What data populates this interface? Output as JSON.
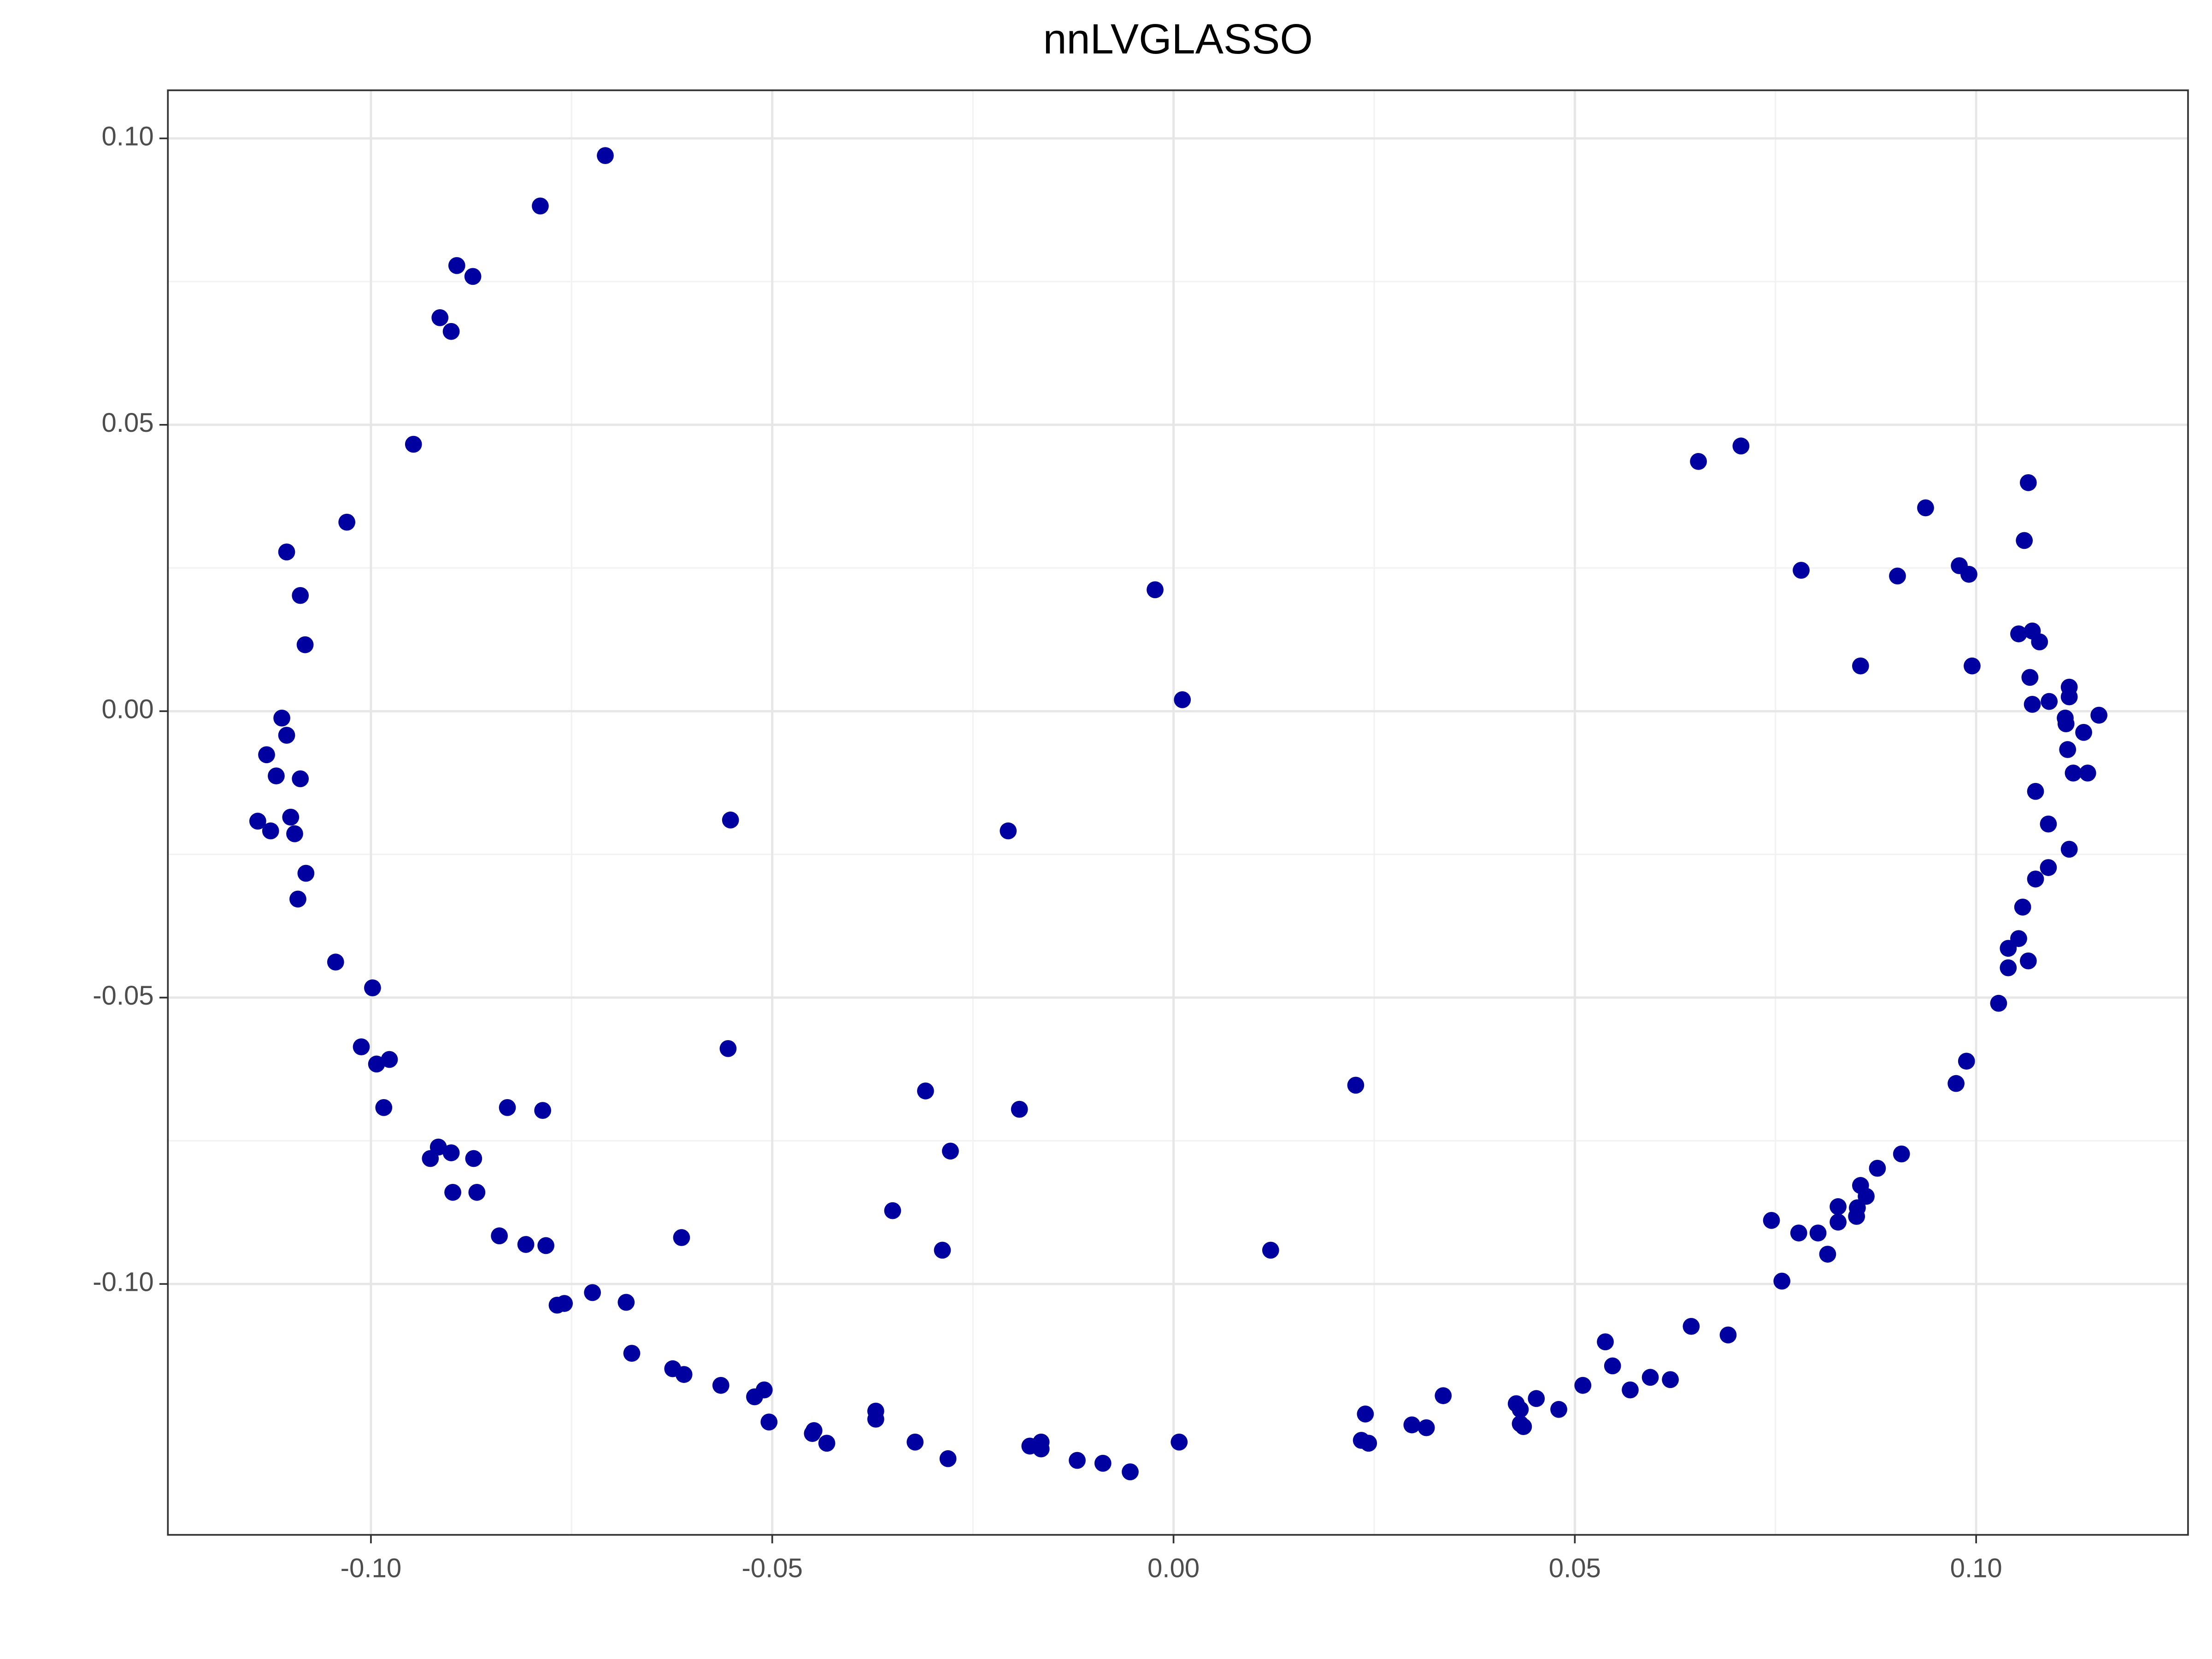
{
  "chart_data": {
    "type": "scatter",
    "title": "nnLVGLASSO",
    "color": "#0000a0",
    "grid": true,
    "xlim": [
      -0.1253,
      0.1264
    ],
    "ylim": [
      -0.1438,
      0.1084
    ],
    "xticks": [
      {
        "value": -0.1,
        "label": "-0.10"
      },
      {
        "value": -0.05,
        "label": "-0.05"
      },
      {
        "value": 0,
        "label": "0.00"
      },
      {
        "value": 0.05,
        "label": "0.05"
      },
      {
        "value": 0.1,
        "label": "0.10"
      }
    ],
    "yticks": [
      {
        "value": -0.1,
        "label": "-0.10"
      },
      {
        "value": -0.05,
        "label": "-0.05"
      },
      {
        "value": 0,
        "label": "0.00"
      },
      {
        "value": 0.05,
        "label": "0.05"
      },
      {
        "value": 0.1,
        "label": "0.10"
      }
    ],
    "x": [
      -0.0708,
      -0.0789,
      -0.0893,
      -0.0873,
      -0.0914,
      -0.09,
      -0.0947,
      -0.103,
      -0.1105,
      -0.1088,
      -0.1082,
      -0.1111,
      -0.1105,
      -0.113,
      -0.1118,
      -0.1088,
      -0.1141,
      -0.11,
      -0.1125,
      -0.1095,
      -0.1081,
      -0.1091,
      -0.1044,
      -0.0998,
      -0.1012,
      -0.0993,
      -0.0977,
      -0.0984,
      -0.0916,
      -0.0926,
      -0.09,
      -0.0872,
      -0.0898,
      -0.0868,
      -0.083,
      -0.0786,
      -0.084,
      -0.0807,
      -0.0782,
      -0.0768,
      -0.0759,
      -0.0724,
      -0.0682,
      -0.0675,
      -0.0624,
      -0.061,
      -0.0613,
      -0.0564,
      -0.0552,
      -0.0555,
      -0.051,
      -0.0522,
      -0.0504,
      -0.0448,
      -0.045,
      -0.0432,
      -0.0371,
      -0.0371,
      -0.0322,
      -0.0281,
      -0.035,
      -0.0309,
      -0.0288,
      -0.0278,
      -0.0206,
      -0.0192,
      -0.0179,
      -0.0165,
      -0.0165,
      -0.012,
      -0.0088,
      -0.0054,
      -0.0023,
      0.0011,
      0.0007,
      0.0121,
      0.0227,
      0.0239,
      0.0234,
      0.0243,
      0.0297,
      0.0315,
      0.0336,
      0.0427,
      0.0432,
      0.0436,
      0.0432,
      0.0452,
      0.048,
      0.051,
      0.0538,
      0.0547,
      0.0569,
      0.0594,
      0.0619,
      0.0645,
      0.0691,
      0.0654,
      0.0707,
      0.0745,
      0.0758,
      0.0779,
      0.0803,
      0.0815,
      0.0828,
      0.0828,
      0.0782,
      0.0856,
      0.0851,
      0.0852,
      0.0856,
      0.0863,
      0.0877,
      0.0902,
      0.0907,
      0.0937,
      0.0975,
      0.0979,
      0.0991,
      0.0988,
      0.0995,
      0.1028,
      0.104,
      0.104,
      0.1053,
      0.1058,
      0.1065,
      0.1053,
      0.106,
      0.1065,
      0.107,
      0.1079,
      0.1067,
      0.107,
      0.1074,
      0.1074,
      0.1091,
      0.109,
      0.109,
      0.1116,
      0.1116,
      0.1111,
      0.1112,
      0.1114,
      0.1121,
      0.1139,
      0.1134,
      0.1153,
      0.1116
    ],
    "y": [
      0.097,
      0.0882,
      0.0778,
      0.0759,
      0.0687,
      0.0663,
      0.0466,
      0.033,
      0.0278,
      0.0202,
      0.0116,
      -0.0012,
      -0.0042,
      -0.0076,
      -0.0113,
      -0.0118,
      -0.0192,
      -0.0185,
      -0.0209,
      -0.0214,
      -0.0283,
      -0.0328,
      -0.0438,
      -0.0483,
      -0.0586,
      -0.0616,
      -0.0608,
      -0.0692,
      -0.0761,
      -0.0781,
      -0.0771,
      -0.0781,
      -0.084,
      -0.084,
      -0.0692,
      -0.0697,
      -0.0916,
      -0.0931,
      -0.0933,
      -0.1037,
      -0.1034,
      -0.1015,
      -0.1032,
      -0.1121,
      -0.1148,
      -0.1158,
      -0.0919,
      -0.1177,
      -0.019,
      -0.0589,
      -0.1185,
      -0.1197,
      -0.1241,
      -0.1256,
      -0.1261,
      -0.1278,
      -0.1222,
      -0.1236,
      -0.1276,
      -0.1305,
      -0.0872,
      -0.0663,
      -0.0941,
      -0.0768,
      -0.0209,
      -0.0695,
      -0.1283,
      -0.1276,
      -0.1288,
      -0.1308,
      -0.1313,
      -0.1328,
      0.0212,
      0.002,
      -0.1276,
      -0.0941,
      -0.0653,
      -0.1227,
      -0.1273,
      -0.1278,
      -0.1246,
      -0.1251,
      -0.1195,
      -0.1209,
      -0.1244,
      -0.1249,
      -0.1219,
      -0.12,
      -0.1219,
      -0.1177,
      -0.1101,
      -0.1143,
      -0.1185,
      -0.1163,
      -0.1167,
      -0.1074,
      -0.1089,
      0.0436,
      0.0463,
      -0.0889,
      -0.0995,
      -0.0911,
      -0.0911,
      -0.0948,
      -0.0892,
      -0.0865,
      0.0246,
      0.0079,
      -0.0882,
      -0.0867,
      -0.0828,
      -0.0847,
      -0.0798,
      0.0236,
      -0.0773,
      0.0355,
      -0.065,
      0.0254,
      0.0239,
      -0.0611,
      0.0079,
      -0.051,
      -0.0414,
      -0.0448,
      -0.0397,
      -0.0342,
      -0.0436,
      0.0135,
      0.0298,
      0.0399,
      0.014,
      0.0121,
      0.0059,
      0.0012,
      -0.014,
      -0.0293,
      0.0017,
      -0.0197,
      -0.0273,
      0.0042,
      0.0025,
      -0.0012,
      -0.0022,
      -0.0067,
      -0.0108,
      -0.0108,
      -0.0037,
      -0.0007,
      -0.0241
    ]
  }
}
